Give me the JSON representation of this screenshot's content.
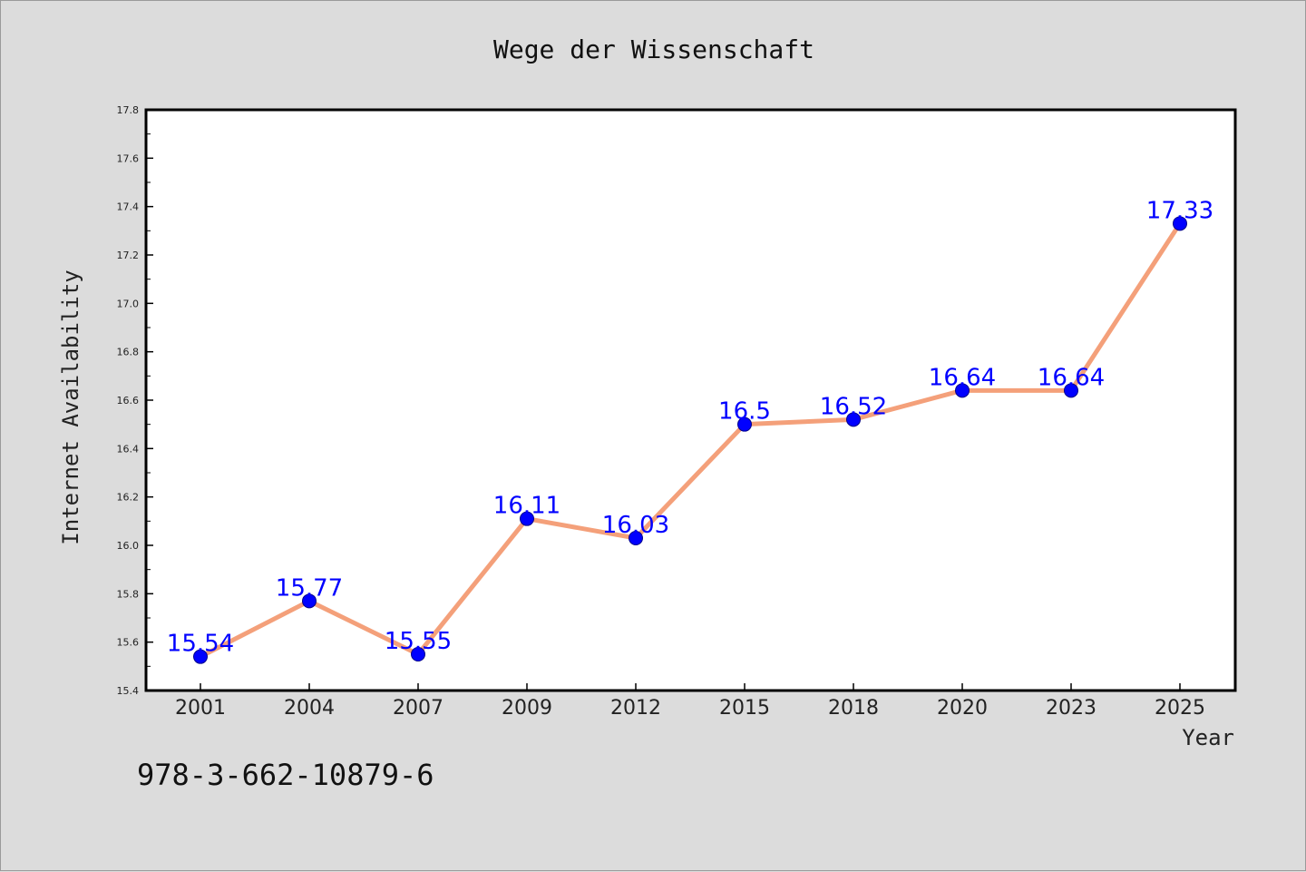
{
  "chart_data": {
    "type": "line",
    "title": "Wege der Wissenschaft",
    "xlabel": "Year",
    "ylabel": "Internet Availability",
    "categories": [
      "2001",
      "2004",
      "2007",
      "2009",
      "2012",
      "2015",
      "2018",
      "2020",
      "2023",
      "2025"
    ],
    "series": [
      {
        "values": [
          15.54,
          15.77,
          15.55,
          16.11,
          16.03,
          16.5,
          16.52,
          16.64,
          16.64,
          17.33
        ],
        "data_labels": [
          "15.54",
          "15.77",
          "15.55",
          "16.11",
          "16.03",
          "16.5",
          "16.52",
          "16.64",
          "16.64",
          "17.33"
        ]
      }
    ],
    "ylim": [
      15.4,
      17.8
    ],
    "yticks": [
      "15.4",
      "15.6",
      "15.8",
      "16.0",
      "16.2",
      "16.4",
      "16.6",
      "16.8",
      "17.0",
      "17.2",
      "17.4",
      "17.6",
      "17.8"
    ],
    "grid": false,
    "legend": "none",
    "colors": {
      "line": "#f4a07a",
      "marker": "#0000ff",
      "data_label": "#0000ff",
      "background": "#dcdcdc",
      "plot_background": "#ffffff"
    }
  },
  "footer": {
    "isbn": "978-3-662-10879-6"
  }
}
